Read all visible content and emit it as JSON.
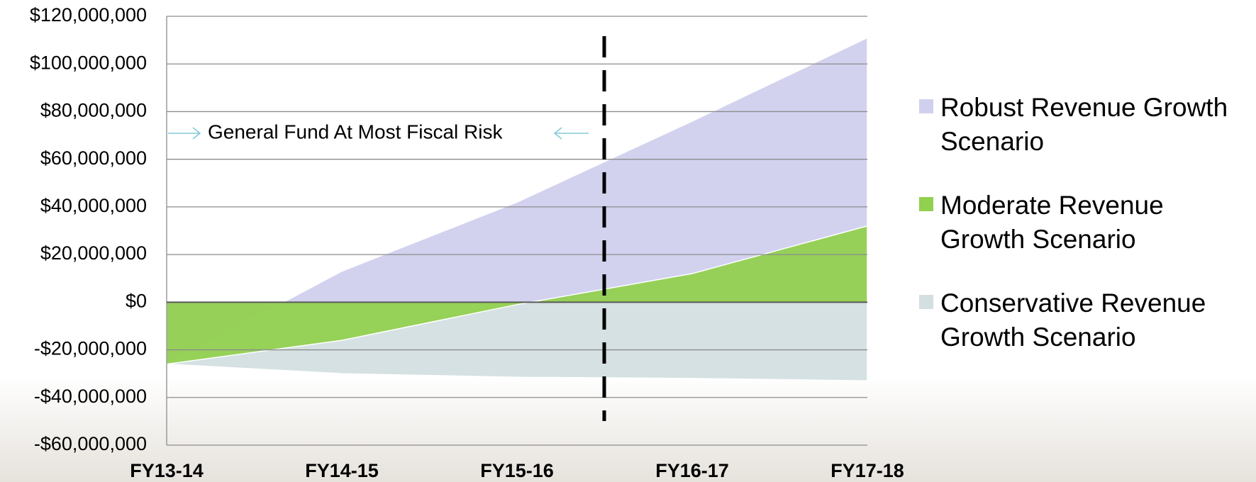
{
  "chart_data": {
    "type": "area",
    "annotation": "General Fund At Most Fiscal Risk",
    "categories": [
      "FY13-14",
      "FY14-15",
      "FY15-16",
      "FY16-17",
      "FY17-18"
    ],
    "series": [
      {
        "name": "Conservative Revenue Growth Scenario",
        "color": "#d3dfe0",
        "values": [
          -26000000,
          -30000000,
          -31500000,
          -32000000,
          -33000000
        ]
      },
      {
        "name": "Robust Revenue Growth Scenario",
        "color": "#d0d0ee",
        "values": [
          -26000000,
          13000000,
          42000000,
          76000000,
          111000000
        ]
      },
      {
        "name": "Moderate Revenue Growth Scenario",
        "color": "#92d050",
        "values": [
          -26000000,
          -16000000,
          -1000000,
          12000000,
          32000000
        ]
      }
    ],
    "legend_order": [
      1,
      2,
      0
    ],
    "ylim": [
      -60000000,
      120000000
    ],
    "yticks": [
      {
        "value": -60000000,
        "label": "-$60,000,000"
      },
      {
        "value": -40000000,
        "label": "-$40,000,000"
      },
      {
        "value": -20000000,
        "label": "-$20,000,000"
      },
      {
        "value": 0,
        "label": "$0"
      },
      {
        "value": 20000000,
        "label": "$20,000,000"
      },
      {
        "value": 40000000,
        "label": "$40,000,000"
      },
      {
        "value": 60000000,
        "label": "$60,000,000"
      },
      {
        "value": 80000000,
        "label": "$80,000,000"
      },
      {
        "value": 100000000,
        "label": "$100,000,000"
      },
      {
        "value": 120000000,
        "label": "$120,000,000"
      }
    ],
    "grid": true
  }
}
